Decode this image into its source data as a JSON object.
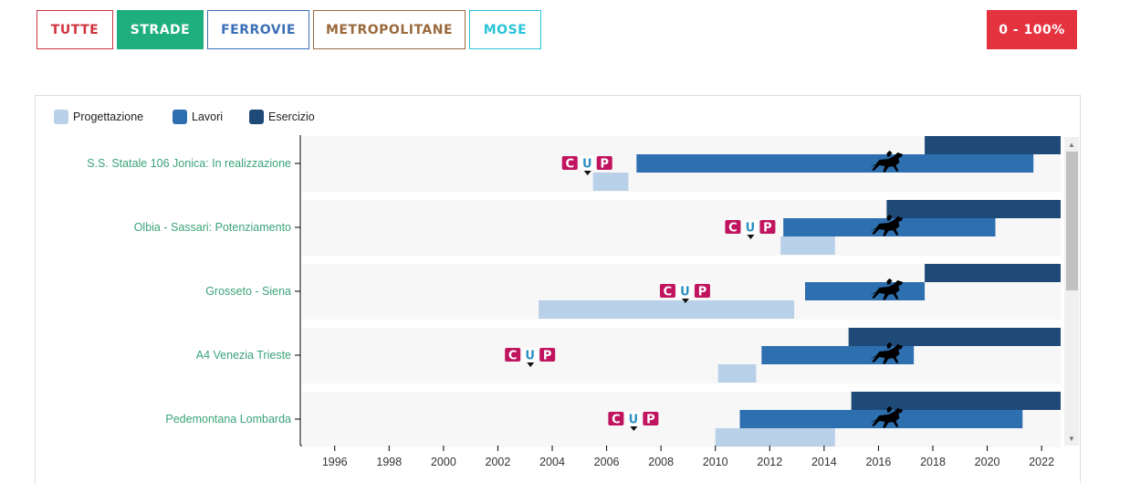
{
  "filters": [
    {
      "label": "TUTTE",
      "color": "#d0343f"
    },
    {
      "label": "STRADE",
      "color": "#1fae7e",
      "active": true
    },
    {
      "label": "FERROVIE",
      "color": "#3b6fb6"
    },
    {
      "label": "METROPOLITANE",
      "color": "#9a6a3d"
    },
    {
      "label": "MOSE",
      "color": "#29c4d8"
    }
  ],
  "range_button": {
    "label": "0 - 100%",
    "color": "#e5323f"
  },
  "legend": [
    {
      "label": "Progettazione",
      "color": "#b8d0e8"
    },
    {
      "label": "Lavori",
      "color": "#2e6fb0"
    },
    {
      "label": "Esercizio",
      "color": "#1f4a77"
    }
  ],
  "cup_logo": {
    "letters": [
      "C",
      "U",
      "P"
    ],
    "colors": [
      "#c0145f",
      "#2b8fc1",
      "#c0145f"
    ]
  },
  "timeline_icon": "horse-rider-icon",
  "chart_data": {
    "type": "gantt",
    "x_unit": "year",
    "xlim": [
      1994.8,
      2022.7
    ],
    "x_ticks": [
      1996,
      1998,
      2000,
      2002,
      2004,
      2006,
      2008,
      2010,
      2012,
      2014,
      2016,
      2018,
      2020,
      2022
    ],
    "rows": [
      {
        "label": "S.S. Statale 106 Jonica: In realizzazione",
        "progettazione": [
          2005.5,
          2006.8
        ],
        "lavori": [
          2007.1,
          2021.7
        ],
        "esercizio": [
          2017.7,
          2022.7
        ],
        "cup": 2005.3,
        "marker": 2016.3
      },
      {
        "label": "Olbia - Sassari: Potenziamento",
        "progettazione": [
          2012.4,
          2014.4
        ],
        "lavori": [
          2012.5,
          2020.3
        ],
        "esercizio": [
          2016.3,
          2022.7
        ],
        "cup": 2011.3,
        "marker": 2016.3
      },
      {
        "label": "Grosseto - Siena",
        "progettazione": [
          2003.5,
          2012.9
        ],
        "lavori": [
          2013.3,
          2017.7
        ],
        "esercizio": [
          2017.7,
          2022.7
        ],
        "cup": 2008.9,
        "marker": 2016.3
      },
      {
        "label": "A4 Venezia Trieste",
        "progettazione": [
          2010.1,
          2011.5
        ],
        "lavori": [
          2011.7,
          2017.3
        ],
        "esercizio": [
          2014.9,
          2022.7
        ],
        "cup": 2003.2,
        "marker": 2016.3
      },
      {
        "label": "Pedemontana Lombarda",
        "progettazione": [
          2010.0,
          2014.4
        ],
        "lavori": [
          2010.9,
          2021.3
        ],
        "esercizio": [
          2015.0,
          2022.7
        ],
        "cup": 2007.0,
        "marker": 2016.3
      }
    ]
  }
}
